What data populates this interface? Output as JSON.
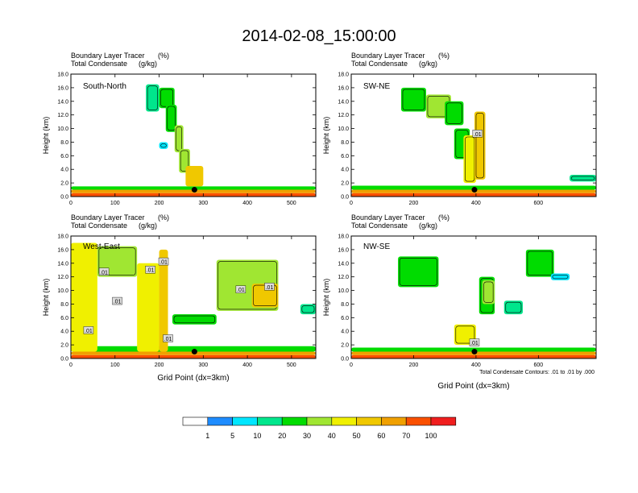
{
  "title": "2014-02-08_15:00:00",
  "colors": {
    "levels": [
      "#ffffff",
      "#1e8cff",
      "#00e6ff",
      "#00e68c",
      "#00dc00",
      "#a0e632",
      "#f0f000",
      "#f0c800",
      "#f0a000",
      "#fa5000",
      "#f01e1e"
    ],
    "contour": "#000000",
    "background": "#ffffff"
  },
  "colorbar": {
    "labels": [
      "1",
      "5",
      "10",
      "20",
      "30",
      "40",
      "50",
      "60",
      "70",
      "100"
    ]
  },
  "chart_data": [
    {
      "type": "heatmap",
      "panel": "South-North",
      "subtitle_left_1": "Boundary Layer Tracer",
      "subtitle_unit_1": "(%)",
      "subtitle_left_2": "Total Condensate",
      "subtitle_unit_2": "(g/kg)",
      "ylabel": "Height (km)",
      "xlabel": "",
      "xlim": [
        0,
        555
      ],
      "ylim": [
        0,
        18
      ],
      "xticks": [
        0,
        100,
        200,
        300,
        400,
        500
      ],
      "yticks": [
        "0.0",
        "2.0",
        "4.0",
        "6.0",
        "8.0",
        "10.0",
        "12.0",
        "14.0",
        "16.0",
        "18.0"
      ],
      "surface_point": [
        280,
        1.0
      ],
      "contour_labels": [],
      "cells": [
        {
          "x": 0,
          "x2": 555,
          "y": 0,
          "y2": 0.5,
          "v": 70
        },
        {
          "x": 0,
          "x2": 555,
          "y": 0.5,
          "y2": 1.0,
          "v": 60
        },
        {
          "x": 0,
          "x2": 555,
          "y": 1.0,
          "y2": 1.5,
          "v": 20
        },
        {
          "x": 170,
          "x2": 200,
          "y": 12.5,
          "y2": 16.5,
          "v": 10
        },
        {
          "x": 200,
          "x2": 235,
          "y": 13.0,
          "y2": 16.0,
          "v": 20
        },
        {
          "x": 215,
          "x2": 240,
          "y": 9.5,
          "y2": 13.5,
          "v": 20
        },
        {
          "x": 235,
          "x2": 255,
          "y": 6.5,
          "y2": 10.5,
          "v": 30
        },
        {
          "x": 245,
          "x2": 270,
          "y": 3.5,
          "y2": 7.0,
          "v": 30
        },
        {
          "x": 260,
          "x2": 300,
          "y": 1.5,
          "y2": 4.5,
          "v": 50
        },
        {
          "x": 200,
          "x2": 220,
          "y": 7.0,
          "y2": 8.0,
          "v": 5
        }
      ]
    },
    {
      "type": "heatmap",
      "panel": "SW-NE",
      "subtitle_left_1": "Boundary Layer Tracer",
      "subtitle_unit_1": "(%)",
      "subtitle_left_2": "Total Condensate",
      "subtitle_unit_2": "(g/kg)",
      "ylabel": "Height (km)",
      "xlabel": "",
      "xlim": [
        0,
        785
      ],
      "ylim": [
        0,
        18
      ],
      "xticks": [
        0,
        200,
        400,
        600
      ],
      "yticks": [
        "0.0",
        "2.0",
        "4.0",
        "6.0",
        "8.0",
        "10.0",
        "12.0",
        "14.0",
        "16.0",
        "18.0"
      ],
      "surface_point": [
        395,
        1.0
      ],
      "contour_labels": [
        {
          "x": 405,
          "y": 9.2,
          "text": ".01"
        }
      ],
      "cells": [
        {
          "x": 0,
          "x2": 785,
          "y": 0,
          "y2": 0.5,
          "v": 70
        },
        {
          "x": 0,
          "x2": 785,
          "y": 0.5,
          "y2": 1.0,
          "v": 60
        },
        {
          "x": 0,
          "x2": 785,
          "y": 1.0,
          "y2": 1.6,
          "v": 20
        },
        {
          "x": 160,
          "x2": 240,
          "y": 12.5,
          "y2": 16.0,
          "v": 20
        },
        {
          "x": 240,
          "x2": 320,
          "y": 11.5,
          "y2": 15.0,
          "v": 30
        },
        {
          "x": 300,
          "x2": 360,
          "y": 10.5,
          "y2": 14.0,
          "v": 20
        },
        {
          "x": 330,
          "x2": 380,
          "y": 5.5,
          "y2": 10.0,
          "v": 20
        },
        {
          "x": 360,
          "x2": 400,
          "y": 2.0,
          "y2": 9.0,
          "v": 40
        },
        {
          "x": 395,
          "x2": 430,
          "y": 2.5,
          "y2": 12.5,
          "v": 50
        },
        {
          "x": 700,
          "x2": 785,
          "y": 2.2,
          "y2": 3.2,
          "v": 10
        }
      ]
    },
    {
      "type": "heatmap",
      "panel": "West-East",
      "subtitle_left_1": "Boundary Layer Tracer",
      "subtitle_unit_1": "(%)",
      "subtitle_left_2": "Total Condensate",
      "subtitle_unit_2": "(g/kg)",
      "ylabel": "Height (km)",
      "xlabel": "Grid Point (dx=3km)",
      "xlim": [
        0,
        555
      ],
      "ylim": [
        0,
        18
      ],
      "xticks": [
        0,
        100,
        200,
        300,
        400,
        500
      ],
      "yticks": [
        "0.0",
        "2.0",
        "4.0",
        "6.0",
        "8.0",
        "10.0",
        "12.0",
        "14.0",
        "16.0",
        "18.0"
      ],
      "surface_point": [
        280,
        1.0
      ],
      "contour_labels": [
        {
          "x": 210,
          "y": 14.2,
          "text": ".01"
        },
        {
          "x": 75,
          "y": 12.7,
          "text": ".01"
        },
        {
          "x": 180,
          "y": 13.0,
          "text": ".01"
        },
        {
          "x": 105,
          "y": 8.4,
          "text": ".01"
        },
        {
          "x": 40,
          "y": 4.1,
          "text": ".01"
        },
        {
          "x": 220,
          "y": 2.9,
          "text": ".01"
        },
        {
          "x": 385,
          "y": 10.1,
          "text": ".01"
        },
        {
          "x": 450,
          "y": 10.5,
          "text": ".01"
        }
      ],
      "cells": [
        {
          "x": 0,
          "x2": 555,
          "y": 0,
          "y2": 0.5,
          "v": 70
        },
        {
          "x": 0,
          "x2": 555,
          "y": 0.5,
          "y2": 1.0,
          "v": 60
        },
        {
          "x": 0,
          "x2": 555,
          "y": 1.0,
          "y2": 1.8,
          "v": 20
        },
        {
          "x": 0,
          "x2": 60,
          "y": 1.0,
          "y2": 17.0,
          "v": 40
        },
        {
          "x": 60,
          "x2": 150,
          "y": 12.0,
          "y2": 16.5,
          "v": 30
        },
        {
          "x": 150,
          "x2": 200,
          "y": 1.0,
          "y2": 14.0,
          "v": 40
        },
        {
          "x": 200,
          "x2": 220,
          "y": 1.0,
          "y2": 16.0,
          "v": 50
        },
        {
          "x": 230,
          "x2": 330,
          "y": 5.0,
          "y2": 6.5,
          "v": 20
        },
        {
          "x": 330,
          "x2": 470,
          "y": 7.0,
          "y2": 14.5,
          "v": 30
        },
        {
          "x": 410,
          "x2": 470,
          "y": 7.5,
          "y2": 11.0,
          "v": 50
        },
        {
          "x": 520,
          "x2": 555,
          "y": 6.5,
          "y2": 8.0,
          "v": 10
        }
      ]
    },
    {
      "type": "heatmap",
      "panel": "NW-SE",
      "subtitle_left_1": "Boundary Layer Tracer",
      "subtitle_unit_1": "(%)",
      "subtitle_left_2": "Total Condensate",
      "subtitle_unit_2": "(g/kg)",
      "ylabel": "Height (km)",
      "xlabel": "Grid Point (dx=3km)",
      "xlim": [
        0,
        785
      ],
      "ylim": [
        0,
        18
      ],
      "xticks": [
        0,
        200,
        400,
        600
      ],
      "yticks": [
        "0.0",
        "2.0",
        "4.0",
        "6.0",
        "8.0",
        "10.0",
        "12.0",
        "14.0",
        "16.0",
        "18.0"
      ],
      "surface_point": [
        395,
        1.0
      ],
      "contour_labels": [
        {
          "x": 395,
          "y": 2.3,
          "text": ".01"
        }
      ],
      "cells": [
        {
          "x": 0,
          "x2": 785,
          "y": 0,
          "y2": 0.5,
          "v": 70
        },
        {
          "x": 0,
          "x2": 785,
          "y": 0.5,
          "y2": 1.0,
          "v": 60
        },
        {
          "x": 0,
          "x2": 785,
          "y": 1.0,
          "y2": 1.6,
          "v": 20
        },
        {
          "x": 150,
          "x2": 280,
          "y": 10.5,
          "y2": 15.0,
          "v": 20
        },
        {
          "x": 330,
          "x2": 400,
          "y": 2.0,
          "y2": 5.0,
          "v": 40
        },
        {
          "x": 410,
          "x2": 460,
          "y": 6.5,
          "y2": 12.0,
          "v": 20
        },
        {
          "x": 420,
          "x2": 460,
          "y": 8.0,
          "y2": 11.5,
          "v": 30
        },
        {
          "x": 490,
          "x2": 550,
          "y": 6.5,
          "y2": 8.5,
          "v": 10
        },
        {
          "x": 560,
          "x2": 650,
          "y": 12.0,
          "y2": 16.0,
          "v": 20
        },
        {
          "x": 640,
          "x2": 700,
          "y": 11.5,
          "y2": 12.5,
          "v": 5
        }
      ]
    }
  ],
  "footnote": "Total Condensate Contours: .01 to .01 by .000"
}
